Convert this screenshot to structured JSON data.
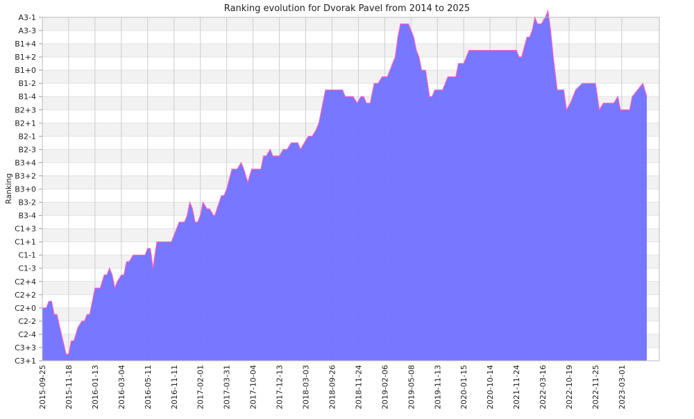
{
  "chart_data": {
    "type": "area",
    "title": "Ranking evolution for Dvorak Pavel from 2014 to 2025",
    "ylabel": "Ranking",
    "xlabel": "",
    "y_categories": [
      "C3+1",
      "C3+3",
      "C2-4",
      "C2-2",
      "C2+0",
      "C2+2",
      "C2+4",
      "C1-3",
      "C1-1",
      "C1+1",
      "C1+3",
      "B3-4",
      "B3-2",
      "B3+0",
      "B3+2",
      "B3+4",
      "B2-3",
      "B2-1",
      "B2+1",
      "B2+3",
      "B1-4",
      "B1-2",
      "B1+0",
      "B1+2",
      "B1+4",
      "A3-3",
      "A3-1"
    ],
    "x_tick_labels": [
      "2015-09-25",
      "2015-11-18",
      "2016-01-13",
      "2016-03-04",
      "2016-05-11",
      "2016-11-11",
      "2017-02-01",
      "2017-03-31",
      "2017-10-04",
      "2017-12-13",
      "2018-03-03",
      "2018-09-26",
      "2018-11-24",
      "2019-02-06",
      "2019-05-08",
      "2019-11-13",
      "2020-01-15",
      "2020-10-14",
      "2021-11-24",
      "2022-03-16",
      "2022-10-19",
      "2022-11-25",
      "2023-03-01"
    ],
    "grid": true,
    "series": [
      {
        "color": "#7070ff",
        "line_color": "#ff60c0",
        "points": [
          [
            0,
            4.0
          ],
          [
            0.15,
            4.0
          ],
          [
            0.25,
            4.5
          ],
          [
            0.35,
            4.5
          ],
          [
            0.45,
            3.5
          ],
          [
            0.55,
            3.5
          ],
          [
            0.9,
            0.5
          ],
          [
            1.0,
            0.5
          ],
          [
            1.1,
            1.5
          ],
          [
            1.2,
            1.5
          ],
          [
            1.35,
            2.5
          ],
          [
            1.5,
            3.0
          ],
          [
            1.6,
            3.0
          ],
          [
            1.7,
            3.5
          ],
          [
            1.8,
            3.5
          ],
          [
            2.0,
            5.5
          ],
          [
            2.2,
            5.5
          ],
          [
            2.35,
            6.5
          ],
          [
            2.45,
            6.5
          ],
          [
            2.55,
            7.0
          ],
          [
            2.65,
            6.5
          ],
          [
            2.75,
            5.5
          ],
          [
            2.85,
            6.0
          ],
          [
            3.0,
            6.5
          ],
          [
            3.1,
            6.5
          ],
          [
            3.2,
            7.5
          ],
          [
            3.3,
            7.5
          ],
          [
            3.45,
            8.0
          ],
          [
            3.55,
            8.0
          ],
          [
            3.9,
            8.0
          ],
          [
            4.0,
            8.5
          ],
          [
            4.1,
            8.5
          ],
          [
            4.2,
            7.0
          ],
          [
            4.35,
            9.0
          ],
          [
            4.5,
            9.0
          ],
          [
            4.7,
            9.0
          ],
          [
            4.9,
            9.0
          ],
          [
            5.1,
            10.0
          ],
          [
            5.2,
            10.5
          ],
          [
            5.4,
            10.5
          ],
          [
            5.5,
            11.0
          ],
          [
            5.6,
            12.0
          ],
          [
            5.7,
            11.5
          ],
          [
            5.8,
            10.5
          ],
          [
            5.9,
            10.5
          ],
          [
            6.0,
            11.0
          ],
          [
            6.1,
            12.0
          ],
          [
            6.25,
            11.5
          ],
          [
            6.35,
            11.5
          ],
          [
            6.5,
            11.0
          ],
          [
            6.55,
            11.0
          ],
          [
            6.8,
            12.5
          ],
          [
            6.9,
            12.5
          ],
          [
            7.0,
            13.0
          ],
          [
            7.2,
            14.5
          ],
          [
            7.4,
            14.5
          ],
          [
            7.55,
            15.0
          ],
          [
            7.65,
            14.5
          ],
          [
            7.8,
            13.5
          ],
          [
            7.95,
            14.5
          ],
          [
            8.1,
            14.5
          ],
          [
            8.3,
            14.5
          ],
          [
            8.4,
            15.5
          ],
          [
            8.5,
            15.5
          ],
          [
            8.65,
            16.0
          ],
          [
            8.75,
            15.5
          ],
          [
            9.0,
            15.5
          ],
          [
            9.15,
            16.0
          ],
          [
            9.3,
            16.0
          ],
          [
            9.45,
            16.5
          ],
          [
            9.6,
            16.5
          ],
          [
            9.7,
            16.5
          ],
          [
            9.8,
            16.0
          ],
          [
            9.95,
            16.5
          ],
          [
            10.1,
            17.0
          ],
          [
            10.25,
            17.0
          ],
          [
            10.4,
            17.5
          ],
          [
            10.5,
            18.0
          ],
          [
            10.6,
            19.0
          ],
          [
            10.75,
            20.5
          ],
          [
            11.0,
            20.5
          ],
          [
            11.4,
            20.5
          ],
          [
            11.5,
            20.0
          ],
          [
            11.8,
            20.0
          ],
          [
            11.95,
            19.5
          ],
          [
            12.1,
            20.0
          ],
          [
            12.2,
            20.0
          ],
          [
            12.3,
            19.5
          ],
          [
            12.45,
            19.5
          ],
          [
            12.6,
            21.0
          ],
          [
            12.75,
            21.0
          ],
          [
            12.9,
            21.5
          ],
          [
            13.1,
            21.5
          ],
          [
            13.3,
            22.5
          ],
          [
            13.4,
            23.0
          ],
          [
            13.5,
            24.5
          ],
          [
            13.6,
            25.5
          ],
          [
            13.7,
            25.5
          ],
          [
            13.9,
            25.5
          ],
          [
            14.0,
            25.0
          ],
          [
            14.1,
            24.5
          ],
          [
            14.2,
            23.5
          ],
          [
            14.3,
            23.0
          ],
          [
            14.4,
            22.0
          ],
          [
            14.55,
            22.0
          ],
          [
            14.7,
            20.0
          ],
          [
            14.8,
            20.0
          ],
          [
            14.9,
            20.5
          ],
          [
            15.2,
            20.5
          ],
          [
            15.4,
            21.5
          ],
          [
            15.7,
            21.5
          ],
          [
            15.8,
            22.5
          ],
          [
            16.0,
            22.5
          ],
          [
            16.2,
            23.5
          ],
          [
            16.4,
            23.5
          ],
          [
            16.6,
            23.5
          ],
          [
            16.8,
            23.5
          ],
          [
            17.0,
            23.5
          ],
          [
            17.2,
            23.5
          ],
          [
            17.5,
            23.5
          ],
          [
            18.0,
            23.5
          ],
          [
            18.1,
            23.0
          ],
          [
            18.2,
            23.0
          ],
          [
            18.4,
            24.5
          ],
          [
            18.5,
            24.5
          ],
          [
            18.6,
            25.0
          ],
          [
            18.7,
            26.0
          ],
          [
            18.8,
            25.5
          ],
          [
            18.95,
            25.5
          ],
          [
            19.1,
            26.0
          ],
          [
            19.2,
            26.5
          ],
          [
            19.3,
            25.0
          ],
          [
            19.4,
            23.0
          ],
          [
            19.55,
            20.5
          ],
          [
            19.8,
            20.5
          ],
          [
            19.9,
            19.0
          ],
          [
            20.05,
            19.5
          ],
          [
            20.25,
            20.5
          ],
          [
            20.5,
            21.0
          ],
          [
            20.75,
            21.0
          ],
          [
            21.0,
            21.0
          ],
          [
            21.15,
            19.0
          ],
          [
            21.3,
            19.5
          ],
          [
            21.5,
            19.5
          ],
          [
            21.7,
            19.5
          ],
          [
            21.85,
            20.0
          ],
          [
            21.95,
            19.0
          ],
          [
            22.2,
            19.0
          ],
          [
            22.3,
            19.0
          ],
          [
            22.4,
            20.0
          ],
          [
            22.6,
            20.5
          ],
          [
            22.8,
            21.0
          ],
          [
            22.95,
            20.0
          ]
        ]
      }
    ]
  }
}
